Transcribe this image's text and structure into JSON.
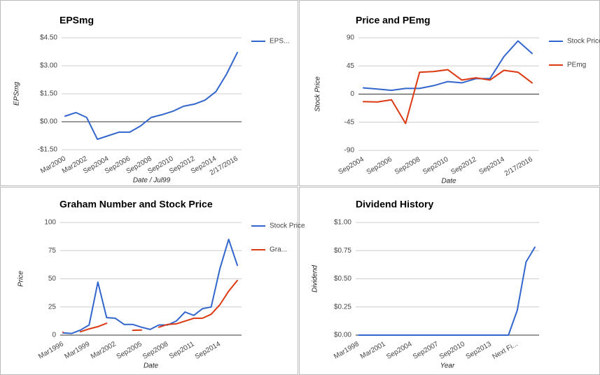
{
  "chart_data": [
    {
      "type": "line",
      "title": "EPSmg",
      "x_label": "Date / Jul99",
      "y_label": "EPSmg",
      "categories": [
        "Mar2000",
        null,
        "Mar2002",
        null,
        "Sep2004",
        null,
        "Sep2006",
        null,
        "Sep2008",
        null,
        "Sep2010",
        null,
        "Sep2012",
        null,
        "Sep2014",
        null,
        "2/17/2016"
      ],
      "series": [
        {
          "name": "EPS...",
          "color": "#3366cc",
          "values": [
            0.3,
            0.49,
            0.23,
            -0.94,
            -0.75,
            -0.56,
            -0.56,
            -0.23,
            0.23,
            0.38,
            0.56,
            0.83,
            0.94,
            1.16,
            1.61,
            2.55,
            3.71
          ]
        }
      ],
      "ylim": [
        -1.5,
        4.5
      ],
      "yticks": [
        {
          "value": -1.5,
          "label": "-$1.50"
        },
        {
          "value": 0,
          "label": "$0.00"
        },
        {
          "value": 1.5,
          "label": "$1.50"
        },
        {
          "value": 3,
          "label": "$3.00"
        },
        {
          "value": 4.5,
          "label": "$4.50"
        }
      ],
      "grid": true,
      "legend": "right"
    },
    {
      "type": "line",
      "title": "Price and PEmg",
      "x_label": "Date",
      "y_label": "Stock Price",
      "categories": [
        "Sep2004",
        null,
        "Sep2006",
        null,
        "Sep2008",
        null,
        "Sep2010",
        null,
        "Sep2012",
        null,
        "Sep2014",
        null,
        "2/17/2016"
      ],
      "series": [
        {
          "name": "Stock Price",
          "color": "#3366cc",
          "values": [
            10,
            8,
            6,
            9,
            9,
            13.5,
            20,
            18,
            24.7,
            24.7,
            60,
            85,
            65
          ]
        },
        {
          "name": "PEmg",
          "color": "#dc3912",
          "values": [
            -12,
            -12.5,
            -9,
            -47,
            35,
            36,
            39,
            22.5,
            26,
            22.5,
            38,
            35,
            18
          ]
        }
      ],
      "ylim": [
        -90,
        90
      ],
      "yticks": [
        -90,
        -45,
        0,
        45,
        90
      ],
      "grid": true,
      "legend": "right"
    },
    {
      "type": "line",
      "title": "Graham Number and Stock Price",
      "x_label": "Date",
      "y_label": "Price",
      "categories": [
        "Mar1996",
        null,
        null,
        "Mar1999",
        null,
        null,
        "Mar2002",
        null,
        null,
        "Sep2005",
        null,
        null,
        "Sep2008",
        null,
        null,
        "Sep2011",
        null,
        null,
        "Sep2014",
        null,
        null
      ],
      "series": [
        {
          "name": "Stock Price",
          "color": "#3366cc",
          "values": [
            2,
            1.5,
            4.5,
            9,
            47,
            15.5,
            15,
            9.5,
            9.5,
            7,
            5,
            9,
            9,
            12.5,
            20.5,
            17.5,
            23.5,
            25,
            59,
            85,
            62
          ]
        },
        {
          "name": "Gra...",
          "color": "#dc3912",
          "values": [
            2.5,
            null,
            3,
            5.5,
            7.5,
            10.5,
            null,
            null,
            4.3,
            4.5,
            null,
            7,
            9.5,
            10,
            12.5,
            15,
            15,
            18.5,
            27,
            39,
            48.5
          ]
        }
      ],
      "ylim": [
        0,
        100
      ],
      "yticks": [
        0,
        25,
        50,
        75,
        100
      ],
      "grid": true,
      "legend": "right"
    },
    {
      "type": "line",
      "title": "Dividend History",
      "x_label": "Year",
      "y_label": "Dividend",
      "categories": [
        "Mar1998",
        null,
        null,
        "Mar2001",
        null,
        null,
        "Sep2004",
        null,
        null,
        "Sep2007",
        null,
        null,
        "Sep2010",
        null,
        null,
        "Sep2013",
        null,
        null,
        "Next Fi...",
        null,
        null
      ],
      "series": [
        {
          "name": "Dividend",
          "color": "#3366cc",
          "values": [
            0,
            0,
            0,
            0,
            0,
            0,
            0,
            0,
            0,
            0,
            0,
            0,
            0,
            0,
            0,
            0,
            0,
            0,
            0.22,
            0.65,
            0.78
          ]
        }
      ],
      "ylim": [
        0,
        1
      ],
      "yticks": [
        {
          "value": 0,
          "label": "$0.00"
        },
        {
          "value": 0.25,
          "label": "$0.25"
        },
        {
          "value": 0.5,
          "label": "$0.50"
        },
        {
          "value": 0.75,
          "label": "$0.75"
        },
        {
          "value": 1,
          "label": "$1.00"
        }
      ],
      "grid": true,
      "legend": "none"
    }
  ]
}
